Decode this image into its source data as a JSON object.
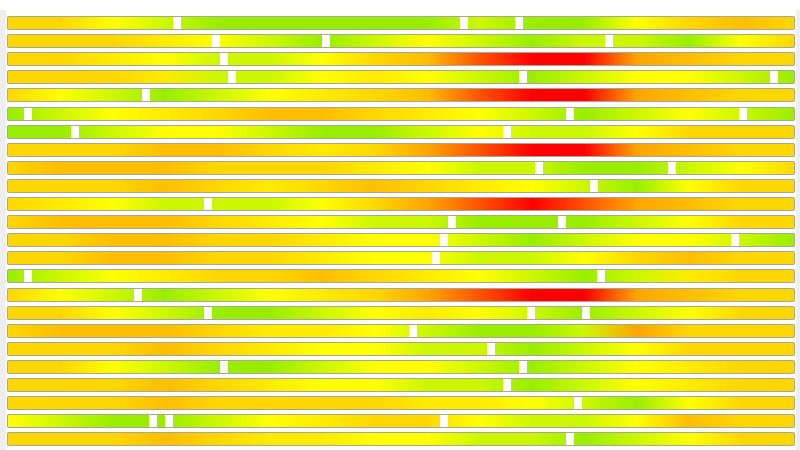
{
  "chart_data": {
    "type": "heatmap",
    "color_scale": {
      "0": "#99ee00",
      "1": "#ffff00",
      "2": "#ffd700",
      "3": "#ffa500",
      "4": "#ff0000"
    },
    "rows": [
      {
        "values": [
          2,
          2,
          1,
          0.5,
          0,
          0,
          0,
          0,
          0,
          0.5,
          0,
          0,
          1,
          2,
          2.5,
          2
        ],
        "markers": [
          0.215,
          0.58,
          0.65
        ]
      },
      {
        "values": [
          2,
          2,
          2,
          1.5,
          1,
          0.5,
          0,
          0.5,
          1,
          0.5,
          0,
          0.5,
          0.5,
          0,
          1,
          2
        ],
        "markers": [
          0.265,
          0.405,
          0.765
        ]
      },
      {
        "values": [
          2,
          2,
          1.5,
          1,
          0.5,
          0.5,
          1,
          2,
          2.5,
          3.5,
          4,
          4,
          3,
          2.5,
          2,
          2
        ],
        "markers": [
          0.275
        ]
      },
      {
        "values": [
          2,
          2,
          2,
          1.5,
          0.5,
          0.5,
          1,
          1.5,
          1,
          0.5,
          0,
          0.5,
          1,
          1,
          0.5,
          0
        ],
        "markers": [
          0.285,
          0.655,
          0.975
        ]
      },
      {
        "values": [
          2,
          1,
          0.5,
          0,
          0.5,
          1,
          1.5,
          2,
          2.5,
          3.5,
          4,
          4,
          3,
          2.5,
          2,
          2
        ],
        "markers": [
          0.175
        ]
      },
      {
        "values": [
          0,
          0.5,
          1,
          1.5,
          2,
          2.5,
          2.5,
          2,
          1.5,
          1,
          0.5,
          0,
          0.5,
          1,
          0.5,
          0
        ],
        "markers": [
          0.025,
          0.715,
          0.935
        ]
      },
      {
        "values": [
          0,
          0,
          0.5,
          1,
          1,
          0.5,
          0,
          0,
          0.5,
          1,
          0.5,
          0.5,
          1,
          2,
          2,
          2
        ],
        "markers": [
          0.085,
          0.635
        ]
      },
      {
        "values": [
          2,
          2,
          2,
          2.5,
          2.5,
          2,
          1.5,
          2,
          3,
          3.5,
          4,
          4,
          3,
          2.5,
          2,
          2
        ],
        "markers": []
      },
      {
        "values": [
          2,
          2.5,
          2.5,
          2.5,
          2,
          2,
          2,
          1.5,
          1,
          0.5,
          0.5,
          0,
          0,
          0.5,
          1,
          2
        ],
        "markers": [
          0.675,
          0.845
        ]
      },
      {
        "values": [
          2,
          2,
          2,
          2.5,
          2,
          1.5,
          2,
          2.5,
          2,
          1.5,
          1,
          0.5,
          0,
          1,
          2,
          2
        ],
        "markers": [
          0.745
        ]
      },
      {
        "values": [
          2,
          1.5,
          1,
          0.5,
          0.5,
          0.5,
          1,
          2,
          3,
          3.5,
          4,
          3.5,
          3,
          2.5,
          2,
          2
        ],
        "markers": [
          0.255
        ]
      },
      {
        "values": [
          2,
          2.5,
          2.5,
          2.5,
          2,
          1.5,
          1,
          0.5,
          0.5,
          0,
          0,
          0,
          0.5,
          1,
          2,
          2
        ],
        "markers": [
          0.565,
          0.705
        ]
      },
      {
        "values": [
          2,
          2,
          2.5,
          2.5,
          2,
          2,
          1.5,
          1,
          1,
          0.5,
          0,
          0.5,
          1,
          1,
          0.5,
          0
        ],
        "markers": [
          0.555,
          0.925
        ]
      },
      {
        "values": [
          2,
          2,
          2.5,
          2.5,
          2,
          2,
          1.5,
          1,
          1,
          0.5,
          0.5,
          1,
          2,
          2.5,
          2,
          2
        ],
        "markers": [
          0.545
        ]
      },
      {
        "values": [
          0,
          0.5,
          1,
          1.5,
          2,
          2,
          2.5,
          2,
          1.5,
          1,
          0.5,
          0,
          0.5,
          1.5,
          2,
          2
        ],
        "markers": [
          0.025,
          0.755
        ]
      },
      {
        "values": [
          2,
          1,
          0.5,
          0,
          0.5,
          1,
          1.5,
          2,
          3,
          3.5,
          4,
          4,
          3,
          2.5,
          2,
          2
        ],
        "markers": [
          0.165
        ]
      },
      {
        "values": [
          2,
          2,
          1,
          0.5,
          0,
          0,
          0.5,
          1,
          1.5,
          1,
          0.5,
          0,
          0.5,
          1,
          2,
          2
        ],
        "markers": [
          0.255,
          0.665,
          0.735
        ]
      },
      {
        "values": [
          2,
          2.5,
          2.5,
          2.5,
          2,
          1.5,
          1.5,
          1,
          0.5,
          0,
          0,
          0.5,
          3,
          2,
          2,
          2
        ],
        "markers": [
          0.515
        ]
      },
      {
        "values": [
          2,
          2,
          2,
          2.5,
          2,
          1.5,
          1,
          1,
          0.5,
          0.5,
          0,
          0.5,
          1,
          2,
          2,
          2
        ],
        "markers": [
          0.615
        ]
      },
      {
        "values": [
          2,
          2,
          1,
          0.5,
          0,
          0,
          0.5,
          1,
          1,
          0.5,
          0,
          0.5,
          1,
          1.5,
          2,
          2
        ],
        "markers": [
          0.275,
          0.655
        ]
      },
      {
        "values": [
          2,
          2,
          2,
          2.5,
          2,
          1.5,
          1,
          1,
          0.5,
          0.5,
          0,
          0.5,
          1,
          1.5,
          2,
          2
        ],
        "markers": [
          0.635
        ]
      },
      {
        "values": [
          2,
          2,
          2,
          2.5,
          2,
          2,
          2,
          2,
          1.5,
          1.5,
          1,
          0.5,
          0,
          1,
          2,
          2
        ],
        "markers": [
          0.725
        ]
      },
      {
        "values": [
          1,
          0.5,
          0,
          0,
          0.5,
          1,
          1.5,
          2,
          2,
          1,
          0.5,
          0.5,
          1,
          2.5,
          2,
          2
        ],
        "markers": [
          0.185,
          0.205,
          0.555
        ]
      },
      {
        "values": [
          2,
          2,
          2,
          2.5,
          2,
          1.5,
          1.5,
          1,
          1,
          0.5,
          0.5,
          0,
          0.5,
          1,
          2,
          2
        ],
        "markers": [
          0.715
        ]
      }
    ]
  }
}
